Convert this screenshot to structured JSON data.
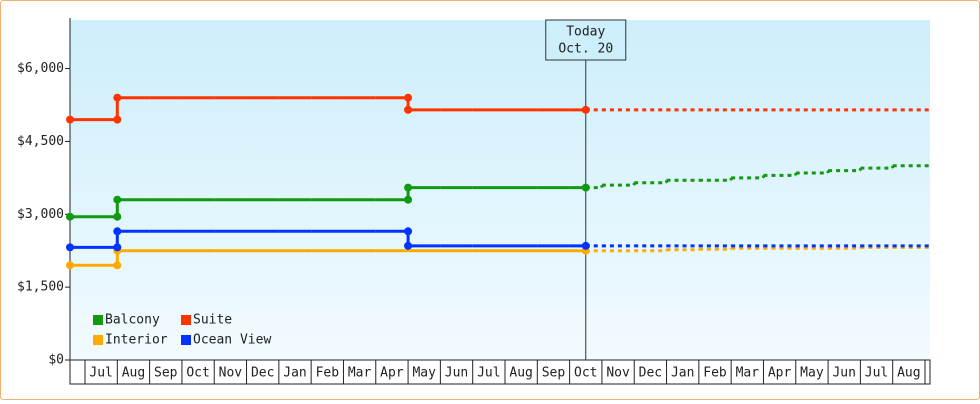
{
  "chart_data": {
    "type": "step",
    "annotation": [
      "Today",
      "Oct. 20"
    ],
    "categories": [
      "Jul",
      "Aug",
      "Sep",
      "Oct",
      "Nov",
      "Dec",
      "Jan",
      "Feb",
      "Mar",
      "Apr",
      "May",
      "Jun",
      "Jul",
      "Aug",
      "Sep",
      "Oct",
      "Nov",
      "Dec",
      "Jan",
      "Feb",
      "Mar",
      "Apr",
      "May",
      "Jun",
      "Jul",
      "Aug"
    ],
    "ylim": [
      0,
      7000
    ],
    "yticks": [
      {
        "value": 0,
        "label": "$0"
      },
      {
        "value": 1500,
        "label": "$1,500"
      },
      {
        "value": 3000,
        "label": "$3,000"
      },
      {
        "value": 4500,
        "label": "$4,500"
      },
      {
        "value": 6000,
        "label": "$6,000"
      }
    ],
    "series": [
      {
        "name": "Balcony",
        "color": "#119911",
        "values": [
          2950,
          3300,
          3300,
          3300,
          3300,
          3300,
          3300,
          3300,
          3300,
          3300,
          3550,
          3550,
          3550,
          3550,
          3550,
          3550,
          null,
          null,
          null,
          null,
          null,
          null,
          null,
          null,
          null,
          null
        ],
        "forecast": [
          null,
          null,
          null,
          null,
          null,
          null,
          null,
          null,
          null,
          null,
          null,
          null,
          null,
          null,
          null,
          3550,
          3600,
          3650,
          3700,
          3700,
          3750,
          3800,
          3850,
          3900,
          3950,
          4000
        ]
      },
      {
        "name": "Suite",
        "color": "#ff3300",
        "values": [
          4950,
          5400,
          5400,
          5400,
          5400,
          5400,
          5400,
          5400,
          5400,
          5400,
          5150,
          5150,
          5150,
          5150,
          5150,
          5150,
          null,
          null,
          null,
          null,
          null,
          null,
          null,
          null,
          null,
          null
        ],
        "forecast": [
          null,
          null,
          null,
          null,
          null,
          null,
          null,
          null,
          null,
          null,
          null,
          null,
          null,
          null,
          null,
          5150,
          5150,
          5150,
          5150,
          5150,
          5150,
          5150,
          5150,
          5150,
          5150,
          5150
        ]
      },
      {
        "name": "Interior",
        "color": "#ffaa00",
        "values": [
          1950,
          2250,
          2250,
          2250,
          2250,
          2250,
          2250,
          2250,
          2250,
          2250,
          2250,
          2250,
          2250,
          2250,
          2250,
          2250,
          null,
          null,
          null,
          null,
          null,
          null,
          null,
          null,
          null,
          null
        ],
        "forecast": [
          null,
          null,
          null,
          null,
          null,
          null,
          null,
          null,
          null,
          null,
          null,
          null,
          null,
          null,
          null,
          2250,
          2250,
          2250,
          2270,
          2280,
          2300,
          2300,
          2300,
          2300,
          2320,
          2320
        ]
      },
      {
        "name": "Ocean View",
        "color": "#0033ff",
        "values": [
          2320,
          2650,
          2650,
          2650,
          2650,
          2650,
          2650,
          2650,
          2650,
          2650,
          2350,
          2350,
          2350,
          2350,
          2350,
          2350,
          null,
          null,
          null,
          null,
          null,
          null,
          null,
          null,
          null,
          null
        ],
        "forecast": [
          null,
          null,
          null,
          null,
          null,
          null,
          null,
          null,
          null,
          null,
          null,
          null,
          null,
          null,
          null,
          2350,
          2350,
          2350,
          2350,
          2350,
          2350,
          2350,
          2350,
          2350,
          2350,
          2350
        ]
      }
    ]
  }
}
